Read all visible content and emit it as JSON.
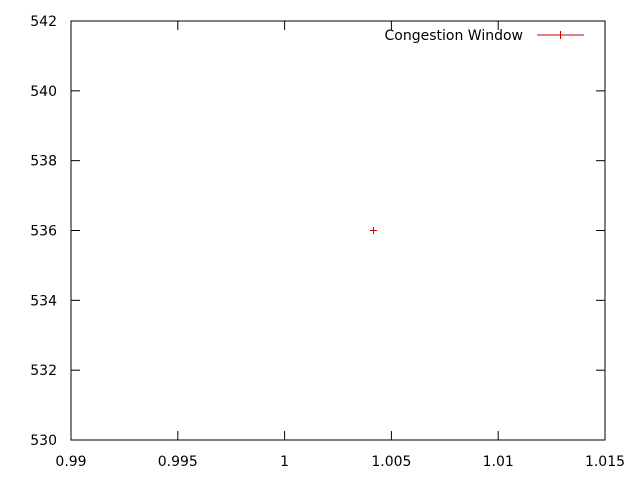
{
  "chart_data": {
    "type": "scatter",
    "title": "",
    "xlabel": "",
    "ylabel": "",
    "xlim": [
      0.99,
      1.015
    ],
    "ylim": [
      530,
      542
    ],
    "x_ticks": [
      0.99,
      0.995,
      1,
      1.005,
      1.01,
      1.015
    ],
    "x_tick_labels": [
      "0.99",
      "0.995",
      "1",
      "1.005",
      "1.01",
      "1.015"
    ],
    "y_ticks": [
      530,
      532,
      534,
      536,
      538,
      540,
      542
    ],
    "y_tick_labels": [
      "530",
      "532",
      "534",
      "536",
      "538",
      "540",
      "542"
    ],
    "grid": false,
    "legend_position": "top-right",
    "series": [
      {
        "name": "Congestion Window",
        "color": "#cc0000",
        "marker": "plus",
        "x": [
          1.00416
        ],
        "y": [
          536
        ]
      }
    ]
  }
}
